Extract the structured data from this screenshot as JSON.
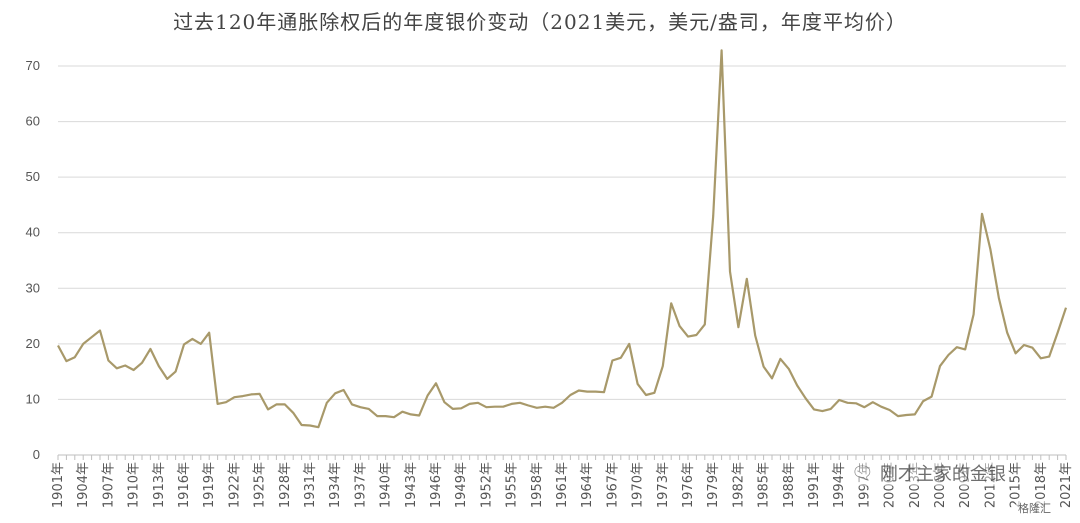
{
  "chart_data": {
    "type": "line",
    "title": "过去120年通胀除权后的年度银价变动（2021美元，美元/盎司，年度平均价）",
    "xlabel": "",
    "ylabel": "",
    "ylim": [
      0,
      70
    ],
    "yticks": [
      0,
      10,
      20,
      30,
      40,
      50,
      60,
      70
    ],
    "grid": true,
    "line_color": "#a8996a",
    "x_tick_labels": [
      "1901年",
      "1904年",
      "1907年",
      "1910年",
      "1913年",
      "1916年",
      "1919年",
      "1922年",
      "1925年",
      "1928年",
      "1931年",
      "1934年",
      "1937年",
      "1940年",
      "1943年",
      "1946年",
      "1949年",
      "1952年",
      "1955年",
      "1958年",
      "1961年",
      "1964年",
      "1967年",
      "1970年",
      "1973年",
      "1976年",
      "1979年",
      "1982年",
      "1985年",
      "1988年",
      "1991年",
      "1994年",
      "1997年",
      "2000年",
      "2003年",
      "2006年",
      "2009年",
      "2012年",
      "2015年",
      "2018年",
      "2021年"
    ],
    "x": [
      1901,
      1902,
      1903,
      1904,
      1905,
      1906,
      1907,
      1908,
      1909,
      1910,
      1911,
      1912,
      1913,
      1914,
      1915,
      1916,
      1917,
      1918,
      1919,
      1920,
      1921,
      1922,
      1923,
      1924,
      1925,
      1926,
      1927,
      1928,
      1929,
      1930,
      1931,
      1932,
      1933,
      1934,
      1935,
      1936,
      1937,
      1938,
      1939,
      1940,
      1941,
      1942,
      1943,
      1944,
      1945,
      1946,
      1947,
      1948,
      1949,
      1950,
      1951,
      1952,
      1953,
      1954,
      1955,
      1956,
      1957,
      1958,
      1959,
      1960,
      1961,
      1962,
      1963,
      1964,
      1965,
      1966,
      1967,
      1968,
      1969,
      1970,
      1971,
      1972,
      1973,
      1974,
      1975,
      1976,
      1977,
      1978,
      1979,
      1980,
      1981,
      1982,
      1983,
      1984,
      1985,
      1986,
      1987,
      1988,
      1989,
      1990,
      1991,
      1992,
      1993,
      1994,
      1995,
      1996,
      1997,
      1998,
      1999,
      2000,
      2001,
      2002,
      2003,
      2004,
      2005,
      2006,
      2007,
      2008,
      2009,
      2010,
      2011,
      2012,
      2013,
      2014,
      2015,
      2016,
      2017,
      2018,
      2019,
      2020,
      2021
    ],
    "series": [
      {
        "values": [
          19.7,
          16.9,
          17.6,
          20.0,
          21.2,
          22.4,
          17.0,
          15.6,
          16.1,
          15.3,
          16.6,
          19.1,
          16.0,
          13.7,
          15.0,
          19.9,
          20.9,
          20.0,
          22.0,
          9.2,
          9.5,
          10.4,
          10.6,
          10.9,
          11.0,
          8.2,
          9.1,
          9.1,
          7.6,
          5.4,
          5.3,
          5.0,
          9.4,
          11.1,
          11.7,
          9.1,
          8.6,
          8.3,
          7.0,
          7.0,
          6.8,
          7.8,
          7.3,
          7.1,
          10.7,
          12.9,
          9.5,
          8.3,
          8.4,
          9.2,
          9.4,
          8.6,
          8.7,
          8.7,
          9.2,
          9.4,
          8.9,
          8.5,
          8.7,
          8.5,
          9.4,
          10.8,
          11.6,
          11.4,
          11.4,
          11.3,
          17.0,
          17.5,
          20.0,
          12.8,
          10.8,
          11.2,
          16.0,
          27.3,
          23.2,
          21.3,
          21.6,
          23.5,
          43.0,
          72.8,
          33.0,
          23.0,
          31.7,
          21.5,
          15.9,
          13.8,
          17.3,
          15.5,
          12.5,
          10.2,
          8.2,
          7.9,
          8.3,
          9.9,
          9.4,
          9.3,
          8.6,
          9.5,
          8.7,
          8.1,
          7.0,
          7.2,
          7.3,
          9.7,
          10.5,
          16.0,
          18.0,
          19.4,
          19.0,
          25.3,
          43.4,
          37.0,
          28.3,
          22.0,
          18.3,
          19.8,
          19.3,
          17.4,
          17.7,
          22.0,
          26.5
        ]
      }
    ]
  },
  "watermark": {
    "text": "刚才主家的金银",
    "icon": "chat-bubble-icon"
  },
  "badge": {
    "text": "格隆汇"
  }
}
